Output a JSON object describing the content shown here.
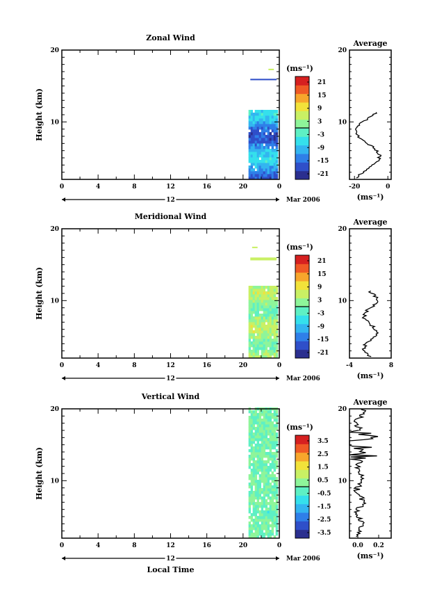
{
  "colors": {
    "scale": [
      "#2b2f8f",
      "#2f4fc9",
      "#2f7fe8",
      "#33b5f0",
      "#35e0ec",
      "#5ef0c4",
      "#8ef59a",
      "#c9f064",
      "#f2e23a",
      "#f7a62c",
      "#ef5a25",
      "#d62020"
    ],
    "axis": "#000000"
  },
  "date_label": "Mar 2006",
  "date_day": "12",
  "xlabel": "Local Time",
  "avg_title": "Average",
  "unit_label": "(ms⁻¹)",
  "chart_data": [
    {
      "type": "heatmap",
      "title": "Zonal Wind",
      "ylabel": "Height (km)",
      "x_ticks": [
        "0",
        "4",
        "8",
        "12",
        "16",
        "20",
        "0"
      ],
      "xlim": [
        0,
        24
      ],
      "y_ticks": [
        "20",
        "10"
      ],
      "ylim": [
        2,
        20
      ],
      "colorbar": {
        "label": "(ms⁻¹)",
        "ticks": [
          "21",
          "15",
          "9",
          "3",
          "-3",
          "-9",
          "-15",
          "-21"
        ],
        "range": [
          -24,
          24
        ]
      },
      "data_extent": {
        "x": [
          20.6,
          23.7
        ],
        "y": [
          2,
          11.3
        ]
      },
      "sparse_layers": [
        {
          "x": [
            20.8,
            23.7
          ],
          "y": [
            15.8,
            16
          ],
          "value": -18
        },
        {
          "x": [
            22.8,
            23.4
          ],
          "y": [
            17.2,
            17.4
          ],
          "value": 4
        }
      ],
      "profile": {
        "title": "Average",
        "xlabel": "(ms⁻¹)",
        "x_ticks": [
          "-20",
          "0"
        ],
        "xlim": [
          -23,
          2
        ],
        "y_ticks": [
          "20",
          "10"
        ]
      }
    },
    {
      "type": "heatmap",
      "title": "Meridional Wind",
      "ylabel": "Height (km)",
      "x_ticks": [
        "0",
        "4",
        "8",
        "12",
        "16",
        "20",
        "0"
      ],
      "xlim": [
        0,
        24
      ],
      "y_ticks": [
        "20",
        "10"
      ],
      "ylim": [
        2,
        20
      ],
      "colorbar": {
        "label": "(ms⁻¹)",
        "ticks": [
          "21",
          "15",
          "9",
          "3",
          "-3",
          "-9",
          "-15",
          "-21"
        ],
        "range": [
          -24,
          24
        ]
      },
      "data_extent": {
        "x": [
          20.6,
          23.7
        ],
        "y": [
          2,
          11.8
        ]
      },
      "sparse_layers": [
        {
          "x": [
            20.8,
            23.7
          ],
          "y": [
            15.6,
            16
          ],
          "value": 5
        },
        {
          "x": [
            21.0,
            21.6
          ],
          "y": [
            17.3,
            17.5
          ],
          "value": 4
        }
      ],
      "profile": {
        "title": "Average",
        "xlabel": "(ms⁻¹)",
        "x_ticks": [
          "-4",
          "8"
        ],
        "xlim": [
          -4,
          8
        ],
        "y_ticks": [
          "20",
          "10"
        ]
      }
    },
    {
      "type": "heatmap",
      "title": "Vertical Wind",
      "ylabel": "Height (km)",
      "x_ticks": [
        "0",
        "4",
        "8",
        "12",
        "16",
        "20",
        "0"
      ],
      "xlim": [
        0,
        24
      ],
      "y_ticks": [
        "20",
        "10"
      ],
      "ylim": [
        2,
        20
      ],
      "colorbar": {
        "label": "(ms⁻¹)",
        "ticks": [
          "3.5",
          "2.5",
          "1.5",
          "0.5",
          "-0.5",
          "-1.5",
          "-2.5",
          "-3.5"
        ],
        "range": [
          -4,
          4
        ]
      },
      "data_extent": {
        "x": [
          20.6,
          23.7
        ],
        "y": [
          2,
          20
        ]
      },
      "sparse_layers": [],
      "profile": {
        "title": "Average",
        "xlabel": "(ms⁻¹)",
        "x_ticks": [
          "0.0",
          "0.2"
        ],
        "xlim": [
          -0.08,
          0.32
        ],
        "y_ticks": [
          "20",
          "10"
        ]
      }
    }
  ]
}
